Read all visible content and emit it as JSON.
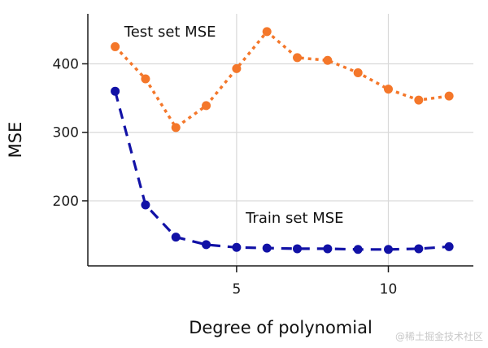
{
  "chart_data": {
    "type": "line",
    "title": "",
    "xlabel": "Degree of polynomial",
    "ylabel": "MSE",
    "x": [
      1,
      2,
      3,
      4,
      5,
      6,
      7,
      8,
      9,
      10,
      11,
      12
    ],
    "xlim": [
      0.1,
      12.8
    ],
    "ylim": [
      105,
      473
    ],
    "xticks": [
      5,
      10
    ],
    "xtick_labels": [
      "5",
      "10"
    ],
    "yticks": [
      200,
      300,
      400
    ],
    "ytick_labels": [
      "200",
      "300",
      "400"
    ],
    "grid": true,
    "series": [
      {
        "name": "Test set MSE",
        "color": "#f4772a",
        "style": "dotted",
        "values": [
          425,
          378,
          307,
          339,
          393,
          447,
          409,
          405,
          387,
          363,
          347,
          353
        ]
      },
      {
        "name": "Train set MSE",
        "color": "#1111a6",
        "style": "dashed",
        "values": [
          360,
          194,
          147,
          136,
          132,
          131,
          130,
          130,
          129,
          129,
          130,
          133
        ]
      }
    ],
    "annotations": [
      {
        "text": "Test set MSE",
        "x": 1.3,
        "y": 440,
        "series": "Test set MSE"
      },
      {
        "text": "Train set MSE",
        "x": 5.3,
        "y": 168,
        "series": "Train set MSE"
      }
    ]
  },
  "watermark": "@稀土掘金技术社区"
}
